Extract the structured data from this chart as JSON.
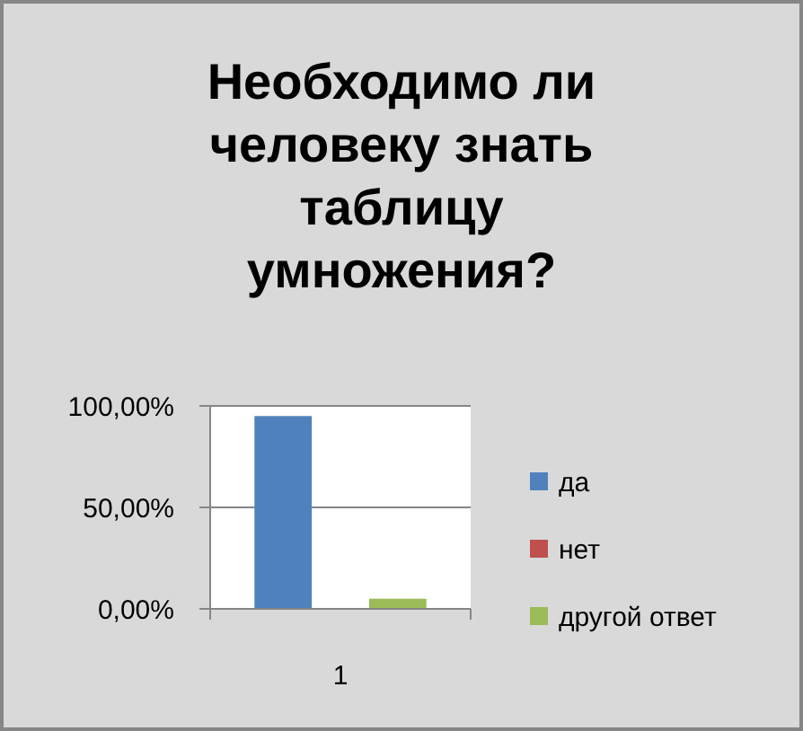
{
  "chart_data": {
    "type": "bar",
    "title": "Необходимо ли человеку знать таблицу умножения?",
    "categories": [
      "1"
    ],
    "series": [
      {
        "name": "да",
        "color": "#4f81bd",
        "values": [
          95
        ]
      },
      {
        "name": "нет",
        "color": "#c0504d",
        "values": [
          0
        ]
      },
      {
        "name": "другой ответ",
        "color": "#9bbb59",
        "values": [
          5
        ]
      }
    ],
    "ylim": [
      0,
      100
    ],
    "yticks": [
      {
        "value": 0,
        "label": "0,00%"
      },
      {
        "value": 50,
        "label": "50,00%"
      },
      {
        "value": 100,
        "label": "100,00%"
      }
    ],
    "grid": "y",
    "legend": "right"
  }
}
